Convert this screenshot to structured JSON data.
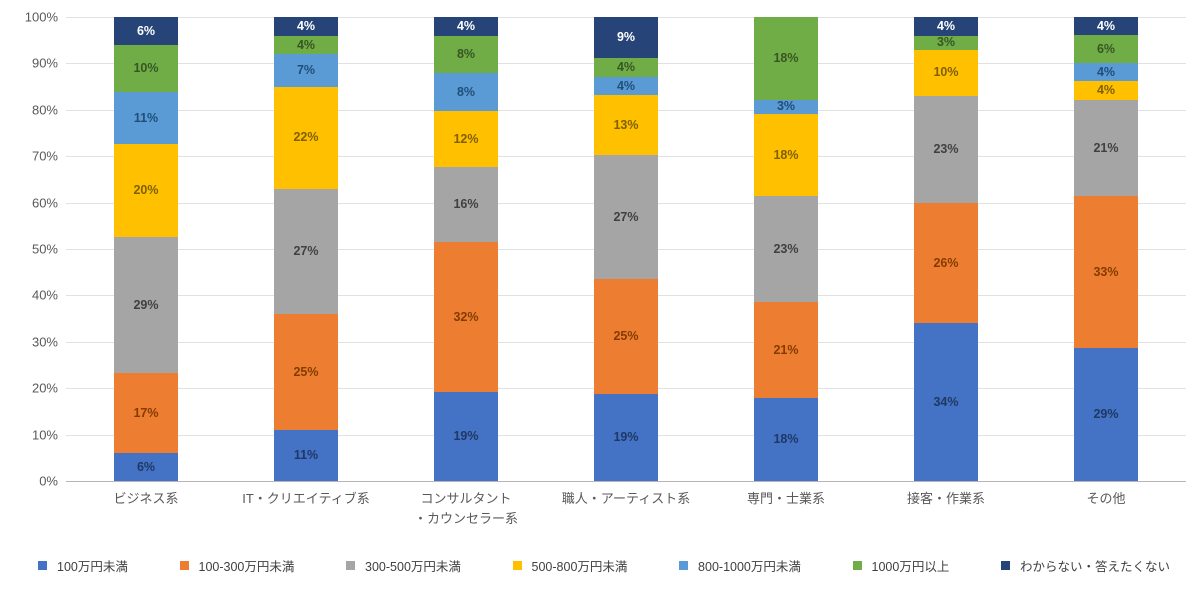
{
  "chart_data": {
    "type": "bar",
    "subtype": "stacked-100-percent",
    "title": "",
    "xlabel": "",
    "ylabel": "",
    "ylim": [
      0,
      100
    ],
    "grid": true,
    "legend_position": "bottom",
    "y_ticks": [
      "0%",
      "10%",
      "20%",
      "30%",
      "40%",
      "50%",
      "60%",
      "70%",
      "80%",
      "90%",
      "100%"
    ],
    "categories": [
      "ビジネス系",
      "IT・クリエイティブ系",
      "コンサルタント\n・カウンセラー系",
      "職人・アーティスト系",
      "専門・士業系",
      "接客・作業系",
      "その他"
    ],
    "series": [
      {
        "name": "100万円未満",
        "color": "#4472C4",
        "label_color": "#1F3864",
        "values": [
          6,
          11,
          19,
          19,
          18,
          34,
          29
        ]
      },
      {
        "name": "100-300万円未満",
        "color": "#ED7D31",
        "label_color": "#833C00",
        "values": [
          17,
          25,
          32,
          25,
          21,
          26,
          33
        ]
      },
      {
        "name": "300-500万円未満",
        "color": "#A5A5A5",
        "label_color": "#404040",
        "values": [
          29,
          27,
          16,
          27,
          23,
          23,
          21
        ]
      },
      {
        "name": "500-800万円未満",
        "color": "#FFC000",
        "label_color": "#7F6000",
        "values": [
          20,
          22,
          12,
          13,
          18,
          10,
          4
        ]
      },
      {
        "name": "800-1000万円未満",
        "color": "#5B9BD5",
        "label_color": "#1F4E79",
        "values": [
          11,
          7,
          8,
          4,
          3,
          0,
          4
        ]
      },
      {
        "name": "1000万円以上",
        "color": "#70AD47",
        "label_color": "#375623",
        "values": [
          10,
          4,
          8,
          4,
          18,
          3,
          6
        ]
      },
      {
        "name": "わからない・答えたくない",
        "color": "#264478",
        "label_color": "#FFFFFF",
        "values": [
          6,
          4,
          4,
          9,
          0,
          4,
          4
        ]
      }
    ],
    "colors": {
      "gridline": "#E2E2E2",
      "axis_line": "#B5B5B5",
      "axis_text": "#595959",
      "legend_text": "#404040"
    }
  }
}
